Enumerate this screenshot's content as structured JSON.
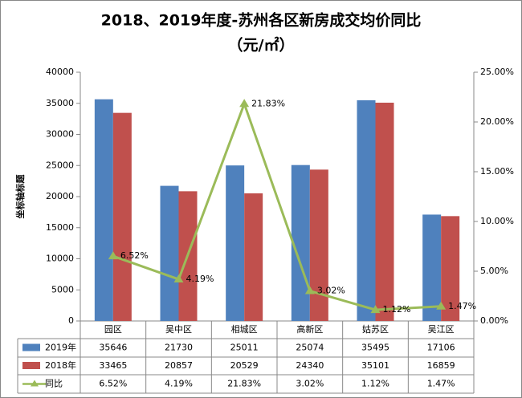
{
  "chart_data": {
    "type": "bar",
    "title": "2018、2019年度-苏州各区新房成交均价同比",
    "subtitle": "（元/㎡）",
    "y_label": "坐标轴标题",
    "categories": [
      "园区",
      "吴中区",
      "相城区",
      "高新区",
      "姑苏区",
      "吴江区"
    ],
    "series": [
      {
        "name": "2019年",
        "color": "#4f81bd",
        "values": [
          35646,
          21730,
          25011,
          25074,
          35495,
          17106
        ]
      },
      {
        "name": "2018年",
        "color": "#c0504d",
        "values": [
          33465,
          20857,
          20529,
          24340,
          35101,
          16859
        ]
      },
      {
        "name": "同比",
        "type": "line",
        "axis": "y2",
        "color": "#9bbb59",
        "values": [
          6.52,
          4.19,
          21.83,
          3.02,
          1.12,
          1.47
        ],
        "value_labels": [
          "6.52%",
          "4.19%",
          "21.83%",
          "3.02%",
          "1.12%",
          "1.47%"
        ]
      }
    ],
    "ylim": [
      0,
      40000
    ],
    "yticks": [
      0,
      5000,
      10000,
      15000,
      20000,
      25000,
      30000,
      35000,
      40000
    ],
    "y2lim": [
      0,
      25
    ],
    "y2ticks": [
      {
        "value": 0,
        "label": "0.00%"
      },
      {
        "value": 5,
        "label": "5.00%"
      },
      {
        "value": 10,
        "label": "10.00%"
      },
      {
        "value": 15,
        "label": "15.00%"
      },
      {
        "value": 20,
        "label": "20.00%"
      },
      {
        "value": 25,
        "label": "25.00%"
      }
    ]
  }
}
